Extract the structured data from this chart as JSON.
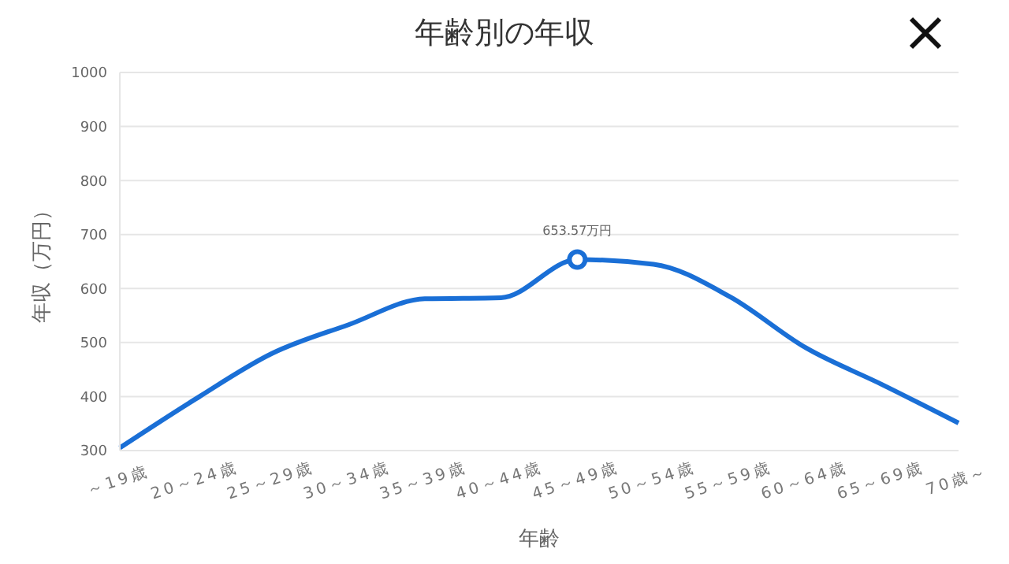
{
  "chart_data": {
    "type": "line",
    "title": "年齢別の年収",
    "xlabel": "年齢",
    "ylabel": "年収（万円）",
    "categories": [
      "～19歳",
      "20～24歳",
      "25～29歳",
      "30～34歳",
      "35～39歳",
      "40～44歳",
      "45～49歳",
      "50～54歳",
      "55～59歳",
      "60～64歳",
      "65～69歳",
      "70歳～"
    ],
    "series": [
      {
        "color": "#1a6fd6",
        "values": [
          305,
          396,
          480,
          533,
          581,
          583,
          653.57,
          645,
          585,
          490,
          422,
          351
        ],
        "value_labels": [
          null,
          null,
          null,
          null,
          null,
          null,
          "653.57万円",
          null,
          null,
          null,
          null,
          null
        ]
      }
    ],
    "ylim": [
      300,
      1000
    ],
    "yticks": [
      300,
      400,
      500,
      600,
      700,
      800,
      900,
      1000
    ],
    "grid": "y",
    "marker": "none",
    "line_style": "solid"
  }
}
